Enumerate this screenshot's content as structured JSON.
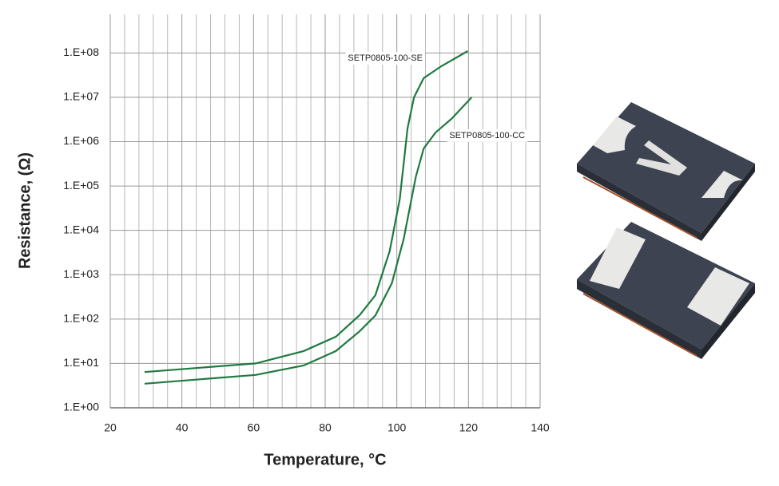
{
  "chart_data": {
    "type": "line",
    "xlabel": "Temperature, °C",
    "ylabel": "Resistance, (Ω)",
    "log_y": true,
    "grid": true,
    "xlim": [
      20,
      140
    ],
    "xticks": [
      20,
      40,
      60,
      80,
      100,
      120,
      140
    ],
    "ylim": [
      1,
      740000000
    ],
    "yticks": [
      {
        "value": 1,
        "label": "1.E+00"
      },
      {
        "value": 10,
        "label": "1.E+01"
      },
      {
        "value": 100,
        "label": "1.E+02"
      },
      {
        "value": 1000,
        "label": "1.E+03"
      },
      {
        "value": 10000,
        "label": "1.E+04"
      },
      {
        "value": 100000,
        "label": "1.E+05"
      },
      {
        "value": 1000000,
        "label": "1.E+06"
      },
      {
        "value": 10000000,
        "label": "1.E+07"
      },
      {
        "value": 100000000,
        "label": "1.E+08"
      }
    ],
    "series": [
      {
        "name": "SETP0805-100-SE",
        "color": "#1f7a3f",
        "x": [
          29.6,
          60.6,
          74,
          83,
          89.6,
          94,
          98,
          100.8,
          103,
          104.8,
          107.5,
          112.4,
          119.8
        ],
        "values": [
          6.4,
          10,
          19,
          40,
          122,
          344,
          3400,
          50000,
          2000000,
          10000000,
          27000000,
          50000000,
          110000000
        ]
      },
      {
        "name": "SETP0805-100-CC",
        "color": "#1f7a3f",
        "x": [
          29.6,
          60.6,
          74,
          83,
          89.6,
          94,
          98.6,
          101.9,
          105.3,
          107.5,
          110.8,
          115.3,
          120.9
        ],
        "values": [
          3.5,
          5.5,
          9,
          19,
          53,
          120,
          640,
          6300,
          160000,
          700000,
          1600000,
          3300000,
          10000000
        ]
      }
    ]
  }
}
